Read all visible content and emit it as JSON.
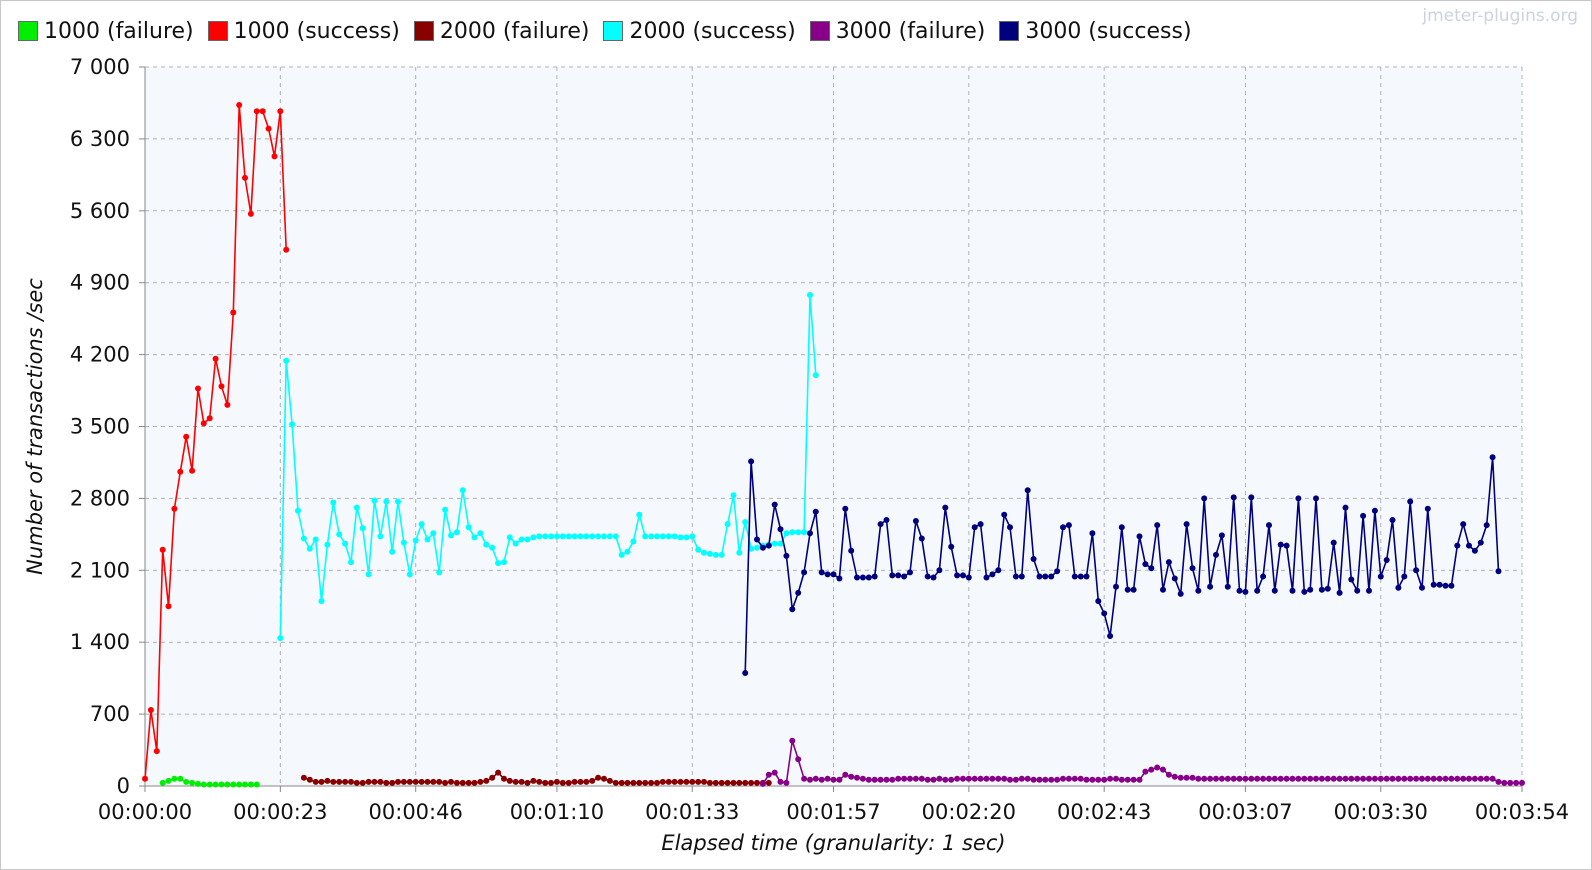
{
  "watermark": "jmeter-plugins.org",
  "chart_data": {
    "type": "line",
    "xlabel": "Elapsed time (granularity: 1 sec)",
    "ylabel": "Number of transactions /sec",
    "xlim": [
      0,
      234
    ],
    "ylim": [
      0,
      7000
    ],
    "x_unit": "seconds",
    "x_ticks": [
      0,
      23,
      46,
      70,
      93,
      117,
      140,
      163,
      187,
      210,
      234
    ],
    "x_tick_labels": [
      "00:00:00",
      "00:00:23",
      "00:00:46",
      "00:01:10",
      "00:01:33",
      "00:01:57",
      "00:02:20",
      "00:02:43",
      "00:03:07",
      "00:03:30",
      "00:03:54"
    ],
    "y_ticks": [
      0,
      700,
      1400,
      2100,
      2800,
      3500,
      4200,
      4900,
      5600,
      6300,
      7000
    ],
    "y_tick_labels": [
      "0",
      "700",
      "1 400",
      "2 100",
      "2 800",
      "3 500",
      "4 200",
      "4 900",
      "5 600",
      "6 300",
      "7 000"
    ],
    "grid": true,
    "legend_position": "top",
    "background": "#f5f9fd",
    "series": [
      {
        "name": "1000 (failure)",
        "color": "#00ee00",
        "x_start": 3,
        "values": [
          30,
          50,
          70,
          70,
          40,
          30,
          20,
          15,
          15,
          15,
          15,
          15,
          15,
          15,
          15,
          15,
          15
        ]
      },
      {
        "name": "1000 (success)",
        "color": "#ff0000",
        "x_start": 0,
        "values": [
          70,
          740,
          340,
          2300,
          1750,
          2700,
          3060,
          3400,
          3070,
          3870,
          3530,
          3580,
          4160,
          3890,
          3710,
          4610,
          6630,
          5920,
          5570,
          6570,
          6570,
          6400,
          6130,
          6570,
          5220
        ]
      },
      {
        "name": "2000 (failure)",
        "color": "#880000",
        "x_start": 27,
        "values": [
          80,
          60,
          40,
          40,
          50,
          40,
          40,
          40,
          40,
          30,
          30,
          40,
          40,
          40,
          30,
          30,
          40,
          40,
          40,
          40,
          40,
          40,
          40,
          40,
          30,
          40,
          30,
          30,
          30,
          30,
          40,
          50,
          80,
          130,
          70,
          50,
          40,
          40,
          30,
          50,
          40,
          30,
          30,
          40,
          30,
          30,
          40,
          40,
          40,
          50,
          80,
          70,
          50,
          30,
          30,
          30,
          30,
          30,
          30,
          30,
          30,
          40,
          40,
          40,
          40,
          40,
          40,
          40,
          40,
          30,
          30,
          30,
          30,
          30,
          30,
          30,
          30,
          30,
          30,
          30
        ]
      },
      {
        "name": "2000 (success)",
        "color": "#00ffff",
        "x_start": 23,
        "values": [
          1440,
          4140,
          3520,
          2680,
          2410,
          2310,
          2400,
          1800,
          2350,
          2760,
          2450,
          2360,
          2180,
          2710,
          2510,
          2060,
          2780,
          2430,
          2770,
          2280,
          2770,
          2370,
          2060,
          2390,
          2550,
          2400,
          2460,
          2080,
          2690,
          2440,
          2470,
          2880,
          2520,
          2420,
          2460,
          2350,
          2320,
          2170,
          2180,
          2420,
          2360,
          2400,
          2400,
          2420,
          2430,
          2430,
          2430,
          2430,
          2430,
          2430,
          2430,
          2430,
          2430,
          2430,
          2430,
          2430,
          2430,
          2430,
          2250,
          2280,
          2380,
          2640,
          2430,
          2430,
          2430,
          2430,
          2430,
          2430,
          2420,
          2420,
          2430,
          2300,
          2270,
          2260,
          2250,
          2250,
          2550,
          2830,
          2270,
          2570,
          2310,
          2320,
          2340,
          2350,
          2360,
          2360,
          2460,
          2470,
          2470,
          2470,
          4780,
          4000
        ]
      },
      {
        "name": "3000 (failure)",
        "color": "#880088",
        "x_start": 105,
        "values": [
          20,
          110,
          130,
          40,
          30,
          440,
          260,
          70,
          60,
          70,
          60,
          70,
          60,
          60,
          110,
          90,
          80,
          70,
          60,
          60,
          60,
          60,
          60,
          70,
          70,
          70,
          70,
          70,
          60,
          60,
          70,
          60,
          60,
          70,
          70,
          70,
          70,
          70,
          70,
          70,
          70,
          70,
          60,
          60,
          70,
          70,
          60,
          60,
          60,
          60,
          60,
          70,
          70,
          70,
          70,
          60,
          60,
          60,
          60,
          70,
          70,
          60,
          60,
          60,
          60,
          140,
          160,
          180,
          160,
          110,
          90,
          80,
          80,
          80,
          70,
          70,
          70,
          70,
          70,
          70,
          70,
          70,
          70,
          70,
          70,
          70,
          70,
          70,
          70,
          70,
          70,
          70,
          70,
          70,
          70,
          70,
          70,
          70,
          70,
          70,
          70,
          70,
          70,
          70,
          70,
          70,
          70,
          70,
          70,
          70,
          70,
          70,
          70,
          70,
          70,
          70,
          70,
          70,
          70,
          70,
          70,
          70,
          70,
          70,
          70,
          40,
          30,
          30,
          30,
          30
        ]
      },
      {
        "name": "3000 (success)",
        "color": "#00007f",
        "x_start": 102,
        "values": [
          1100,
          3160,
          2400,
          2320,
          2340,
          2740,
          2500,
          2240,
          1720,
          1880,
          2080,
          2460,
          2670,
          2080,
          2060,
          2060,
          2020,
          2700,
          2290,
          2030,
          2030,
          2030,
          2040,
          2550,
          2590,
          2050,
          2050,
          2040,
          2080,
          2580,
          2410,
          2040,
          2030,
          2100,
          2710,
          2330,
          2050,
          2050,
          2030,
          2520,
          2550,
          2030,
          2060,
          2100,
          2640,
          2520,
          2040,
          2040,
          2880,
          2210,
          2040,
          2040,
          2040,
          2090,
          2520,
          2540,
          2040,
          2040,
          2040,
          2460,
          1800,
          1680,
          1460,
          1940,
          2520,
          1910,
          1910,
          2430,
          2160,
          2120,
          2540,
          1910,
          2180,
          2020,
          1870,
          2550,
          2120,
          1900,
          2800,
          1940,
          2250,
          2440,
          1940,
          2810,
          1900,
          1890,
          2810,
          1900,
          2040,
          2540,
          1900,
          2350,
          2340,
          1900,
          2800,
          1890,
          1910,
          2800,
          1910,
          1920,
          2370,
          1880,
          2710,
          2010,
          1900,
          2630,
          1900,
          2680,
          2040,
          2200,
          2590,
          1930,
          2040,
          2770,
          2100,
          1930,
          2700,
          1960,
          1960,
          1950,
          1950,
          2340,
          2550,
          2340,
          2290,
          2370,
          2540,
          3200,
          2090
        ]
      }
    ]
  }
}
